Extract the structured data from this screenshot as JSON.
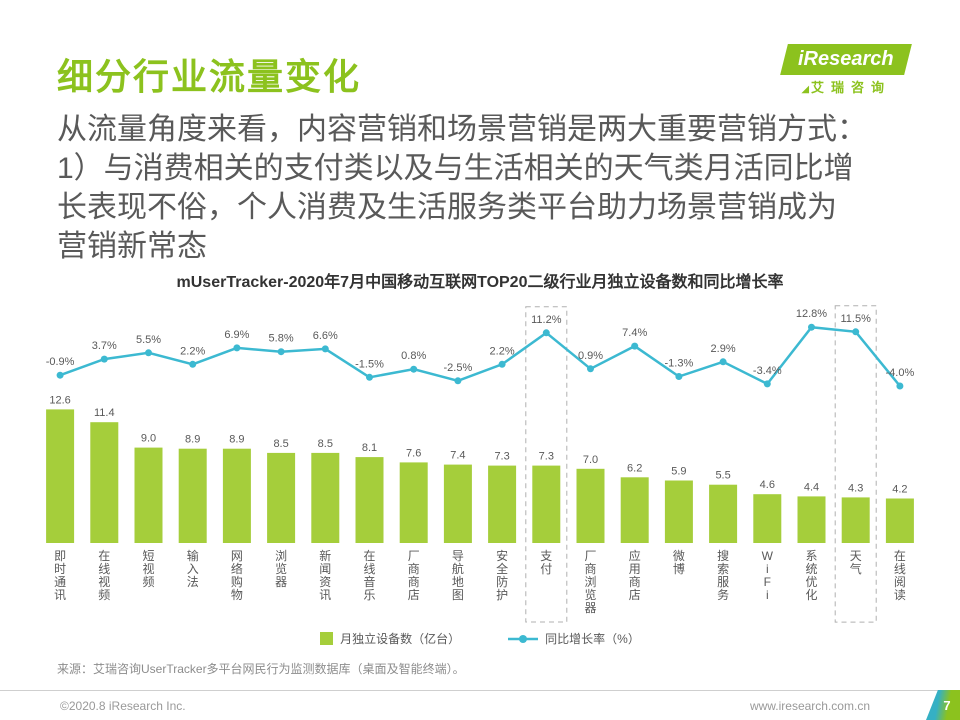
{
  "page": {
    "title": "细分行业流量变化",
    "logo": {
      "brand": "iResearch",
      "brand_cn": "艾瑞咨询"
    },
    "paragraph": "从流量角度来看，内容营销和场景营销是两大重要营销方式：\n1）与消费相关的支付类以及与生活相关的天气类月活同比增\n长表现不俗，个人消费及生活服务类平台助力场景营销成为\n营销新常态",
    "source": "来源：艾瑞咨询UserTracker多平台网民行为监测数据库（桌面及智能终端）。",
    "footer": {
      "copyright": "©2020.8 iResearch Inc.",
      "site": "www.iresearch.com.cn",
      "page_number": "7"
    }
  },
  "chart_data": {
    "type": "bar",
    "subtype": "bar+line combo",
    "title": "mUserTracker-2020年7月中国移动互联网TOP20二级行业月独立设备数和同比增长率",
    "categories": [
      "即时通讯",
      "在线视频",
      "短视频",
      "输入法",
      "网络购物",
      "浏览器",
      "新闻资讯",
      "在线音乐",
      "厂商商店",
      "导航地图",
      "安全防护",
      "支付",
      "厂商浏览器",
      "应用商店",
      "微博",
      "搜索服务",
      "WiFi",
      "系统优化",
      "天气",
      "在线阅读"
    ],
    "series": [
      {
        "name": "月独立设备数（亿台）",
        "type": "bar",
        "color": "#A5CE3B",
        "values": [
          12.6,
          11.4,
          9.0,
          8.9,
          8.9,
          8.5,
          8.5,
          8.1,
          7.6,
          7.4,
          7.3,
          7.3,
          7.0,
          6.2,
          5.9,
          5.5,
          4.6,
          4.4,
          4.3,
          4.2
        ]
      },
      {
        "name": "同比增长率（%）",
        "type": "line",
        "color": "#3CB9D1",
        "values": [
          -0.9,
          3.7,
          5.5,
          2.2,
          6.9,
          5.8,
          6.6,
          -1.5,
          0.8,
          -2.5,
          2.2,
          11.2,
          0.9,
          7.4,
          -1.3,
          2.9,
          -3.4,
          12.8,
          11.5,
          -4.0
        ]
      }
    ],
    "highlighted_categories": [
      "支付",
      "天气"
    ],
    "ylim_bar": [
      0,
      13
    ],
    "ylim_pct": [
      -6,
      14
    ],
    "grid": false,
    "legend_position": "bottom"
  }
}
